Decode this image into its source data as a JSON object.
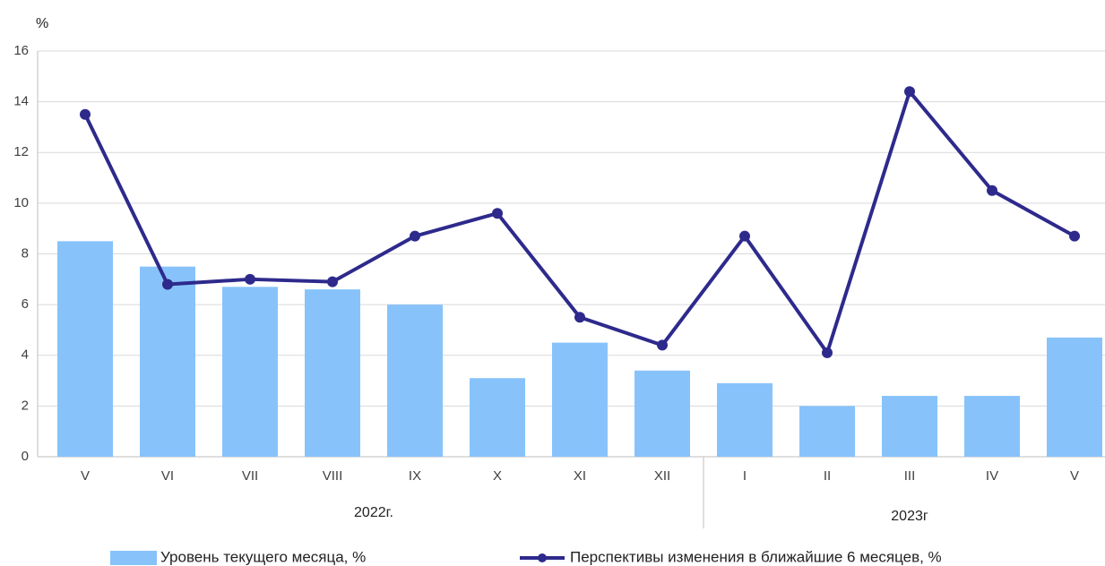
{
  "chart_data": {
    "type": "bar_line",
    "y_axis_label": "%",
    "groups": [
      {
        "label": "2022г.",
        "categories": [
          "V",
          "VI",
          "VII",
          "VIII",
          "IX",
          "X",
          "XI",
          "XII"
        ]
      },
      {
        "label": "2023г",
        "categories": [
          "I",
          "II",
          "III",
          "IV",
          "V"
        ]
      }
    ],
    "series": [
      {
        "name": "Уровень текущего месяца, %",
        "type": "bar",
        "color": "#87c3fa",
        "values": [
          8.5,
          7.5,
          6.7,
          6.6,
          6.0,
          3.1,
          4.5,
          3.4,
          2.9,
          2.0,
          2.4,
          2.4,
          4.7
        ]
      },
      {
        "name": "Перспективы изменения в ближайшие 6 месяцев, %",
        "type": "line",
        "color": "#2e2a8c",
        "values": [
          13.5,
          6.8,
          7.0,
          6.9,
          8.7,
          9.6,
          5.5,
          4.4,
          8.7,
          4.1,
          14.4,
          10.5,
          8.7
        ]
      }
    ],
    "ylim": [
      0,
      16
    ],
    "yticks": [
      0,
      2,
      4,
      6,
      8,
      10,
      12,
      14,
      16
    ],
    "grid": true
  }
}
